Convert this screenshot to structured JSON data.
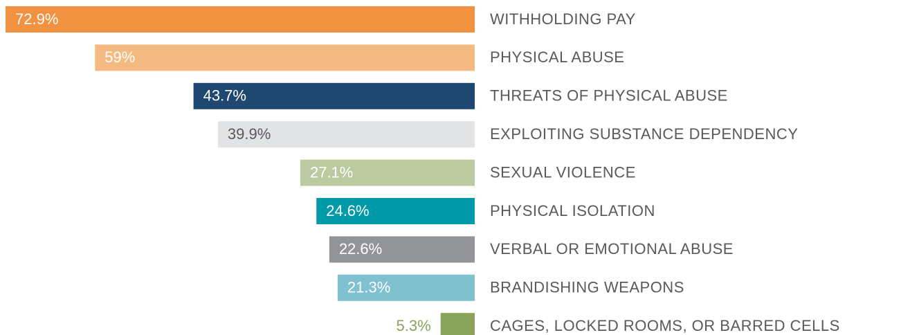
{
  "chart_data": {
    "type": "bar",
    "orientation": "horizontal",
    "direction": "leftward",
    "categories": [
      "WITHHOLDING PAY",
      "PHYSICAL ABUSE",
      "THREATS OF PHYSICAL ABUSE",
      "EXPLOITING SUBSTANCE DEPENDENCY",
      "SEXUAL VIOLENCE",
      "PHYSICAL ISOLATION",
      "VERBAL OR EMOTIONAL ABUSE",
      "BRANDISHING WEAPONS",
      "CAGES, LOCKED ROOMS, OR BARRED CELLS"
    ],
    "values": [
      72.9,
      59,
      43.7,
      39.9,
      27.1,
      24.6,
      22.6,
      21.3,
      5.3
    ],
    "value_labels": [
      "72.9%",
      "59%",
      "43.7%",
      "39.9%",
      "27.1%",
      "24.6%",
      "22.6%",
      "21.3%",
      "5.3%"
    ],
    "colors": [
      "#f0923f",
      "#f5b982",
      "#1e4870",
      "#e2e3e4",
      "#bccaa0",
      "#009aab",
      "#929497",
      "#7fc1cf",
      "#89a35a"
    ],
    "value_label_colors": [
      "#ffffff",
      "#ffffff",
      "#ffffff",
      "#58595b",
      "#ffffff",
      "#ffffff",
      "#ffffff",
      "#ffffff",
      "#89a35a"
    ]
  }
}
